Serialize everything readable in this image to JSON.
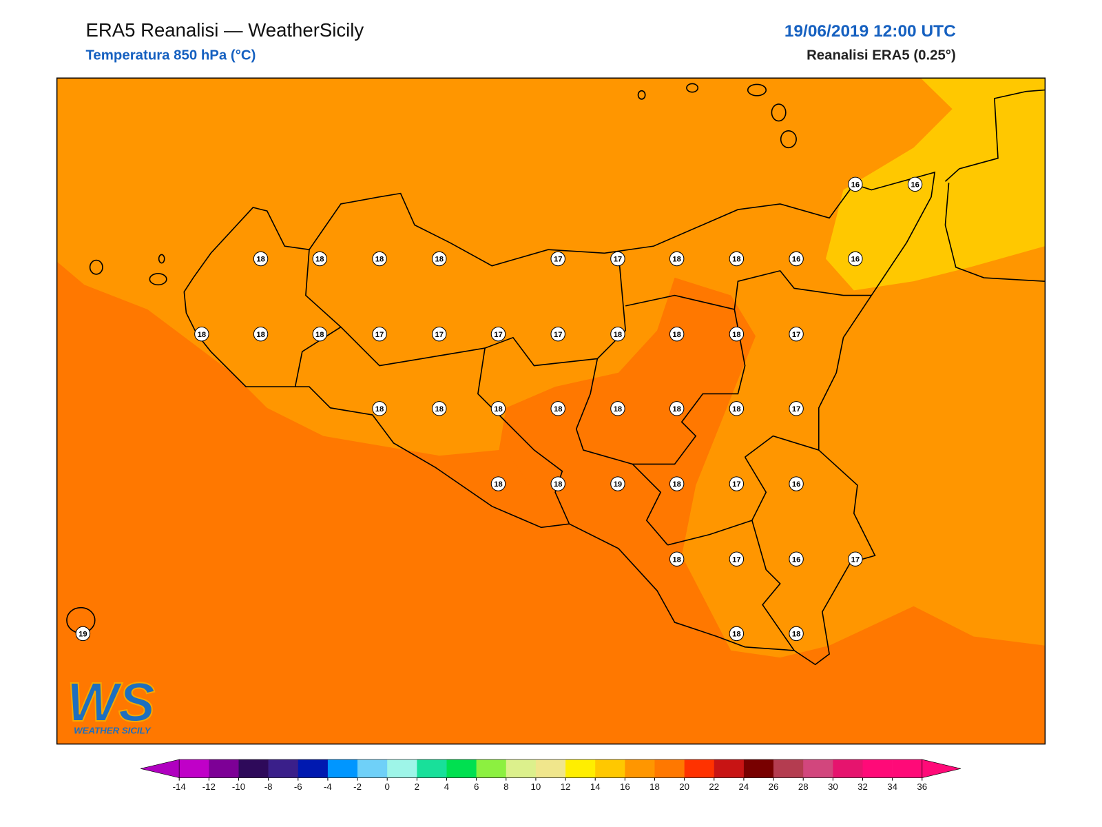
{
  "header": {
    "title": "ERA5 Reanalisi — WeatherSicily",
    "subtitle": "Temperatura 850 hPa (°C)",
    "date": "19/06/2019 12:00 UTC",
    "source": "Reanalisi ERA5 (0.25°)"
  },
  "logo": {
    "mark": "WS",
    "name": "WEATHER SICILY"
  },
  "stations": {
    "values": [
      16,
      16,
      18,
      18,
      18,
      18,
      17,
      17,
      18,
      18,
      16,
      16,
      18,
      18,
      18,
      17,
      17,
      17,
      17,
      18,
      18,
      18,
      17,
      18,
      18,
      18,
      18,
      18,
      18,
      18,
      17,
      18,
      18,
      19,
      18,
      17,
      16,
      18,
      17,
      16,
      17,
      19,
      18,
      18
    ]
  },
  "colorbar": {
    "ticks": [
      -14,
      -12,
      -10,
      -8,
      -6,
      -4,
      -2,
      0,
      2,
      4,
      6,
      8,
      10,
      12,
      14,
      16,
      18,
      20,
      22,
      24,
      26,
      28,
      30,
      32,
      34,
      36
    ],
    "colors": [
      "#c000c8",
      "#7d0096",
      "#2e0a5a",
      "#3a1f8a",
      "#0019b0",
      "#0096ff",
      "#6fd0f8",
      "#9ef5e8",
      "#18e09a",
      "#00e050",
      "#8cf040",
      "#dcf08c",
      "#f0e68c",
      "#ffee00",
      "#ffc800",
      "#ff9600",
      "#ff7800",
      "#ff3200",
      "#c81414",
      "#780000",
      "#b43c50",
      "#d2467d",
      "#e6146e",
      "#ff0a78",
      "#ff0a78"
    ],
    "under": "#b000c0",
    "over": "#ff0a78"
  }
}
